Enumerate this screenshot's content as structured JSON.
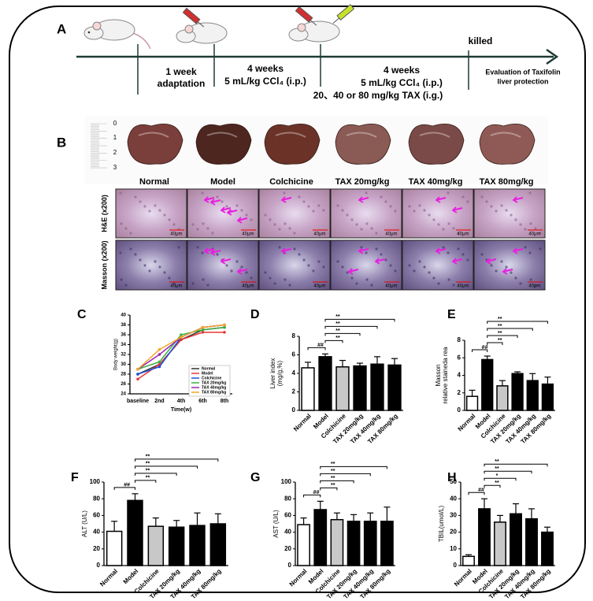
{
  "timeline": {
    "label": "A",
    "phases": [
      {
        "duration": "1 week",
        "treatment": "adaptation"
      },
      {
        "duration": "4 weeks",
        "treatment": "5 mL/kg CCl₄ (i.p.)"
      },
      {
        "duration": "4 weeks",
        "treatment": "5 mL/kg CCl₄ (i.p.)",
        "treatment2": "20、40 or 80 mg/kg TAX (i.g.)"
      }
    ],
    "end": "killed",
    "evaluation": [
      "Evaluation of Taxifolin",
      "liver protection"
    ]
  },
  "histology": {
    "label": "B",
    "ruler": [
      "0",
      "1",
      "2",
      "3"
    ],
    "groups": [
      "Normal",
      "Model",
      "Colchicine",
      "TAX 20mg/kg",
      "TAX 40mg/kg",
      "TAX 80mg/kg"
    ],
    "rows": [
      "H&E (x200)",
      "Masson (x200)"
    ],
    "scale_bar": "40μm"
  },
  "chart_data": [
    {
      "label": "C",
      "type": "line",
      "xlabel": "Time(w)",
      "ylabel": "Body weight(g)",
      "categories": [
        "baseline",
        "2nd",
        "4th",
        "6th",
        "8th"
      ],
      "ylim": [
        24,
        40
      ],
      "yticks": [
        24,
        26,
        28,
        30,
        32,
        34,
        36,
        38,
        40
      ],
      "series": [
        {
          "name": "Normal",
          "color": "#333333",
          "values": [
            28,
            30,
            35,
            37,
            37.5
          ]
        },
        {
          "name": "Model",
          "color": "#e53935",
          "values": [
            27,
            30,
            35,
            36.5,
            36.5
          ]
        },
        {
          "name": "Colchicine",
          "color": "#1e4fd8",
          "values": [
            28,
            29.5,
            35.5,
            37.5,
            38
          ]
        },
        {
          "name": "TAX 20mg/kg",
          "color": "#3cb043",
          "values": [
            29,
            30.5,
            36,
            37,
            37.5
          ]
        },
        {
          "name": "TAX 40mg/kg",
          "color": "#9c27b0",
          "values": [
            29,
            32,
            35.5,
            37.5,
            38
          ]
        },
        {
          "name": "TAX 80mg/kg",
          "color": "#f5a623",
          "values": [
            29,
            33,
            35.5,
            37.5,
            38
          ]
        }
      ]
    },
    {
      "label": "D",
      "type": "bar",
      "ylabel": [
        "Liver index",
        "(mg/g,%)"
      ],
      "categories": [
        "Normal",
        "Model",
        "Colchicine",
        "TAX 20mg/kg",
        "TAX 40mg/kg",
        "TAX 80mg/kg"
      ],
      "values": [
        4.6,
        5.8,
        4.7,
        4.8,
        5.0,
        4.9
      ],
      "errors": [
        0.6,
        0.3,
        0.7,
        0.3,
        0.8,
        0.7
      ],
      "colors": [
        "#ffffff",
        "#000000",
        "#c8c8c8",
        "#000000",
        "#000000",
        "#000000"
      ],
      "ylim": [
        0,
        8
      ],
      "yticks": [
        0,
        2,
        4,
        6,
        8
      ],
      "significance": [
        {
          "groups": [
            "Normal",
            "Model"
          ],
          "label": "##"
        },
        {
          "groups": [
            "Model",
            "Colchicine"
          ],
          "label": "**"
        },
        {
          "groups": [
            "Model",
            "TAX 20mg/kg"
          ],
          "label": "**"
        },
        {
          "groups": [
            "Model",
            "TAX 40mg/kg"
          ],
          "label": "**"
        },
        {
          "groups": [
            "Model",
            "TAX 80mg/kg"
          ],
          "label": "**"
        }
      ]
    },
    {
      "label": "E",
      "type": "bar",
      "ylabel": [
        "Masson",
        "relative staineda rea"
      ],
      "categories": [
        "Normal",
        "Model",
        "Colchicine",
        "TAX 20mg/kg",
        "TAX 40mg/kg",
        "TAX 80mg/kg"
      ],
      "values": [
        1.6,
        5.8,
        2.8,
        4.2,
        3.4,
        3.0
      ],
      "errors": [
        0.7,
        0.4,
        0.6,
        0.2,
        0.8,
        0.8
      ],
      "colors": [
        "#ffffff",
        "#000000",
        "#c8c8c8",
        "#000000",
        "#000000",
        "#000000"
      ],
      "ylim": [
        0,
        8
      ],
      "yticks": [
        0,
        2,
        4,
        6,
        8
      ],
      "significance": [
        {
          "groups": [
            "Normal",
            "Model"
          ],
          "label": "##"
        },
        {
          "groups": [
            "Model",
            "Colchicine"
          ],
          "label": "**"
        },
        {
          "groups": [
            "Model",
            "TAX 20mg/kg"
          ],
          "label": "**"
        },
        {
          "groups": [
            "Model",
            "TAX 40mg/kg"
          ],
          "label": "**"
        },
        {
          "groups": [
            "Model",
            "TAX 80mg/kg"
          ],
          "label": "**"
        }
      ]
    },
    {
      "label": "F",
      "type": "bar",
      "ylabel": [
        "ALT (U/L)"
      ],
      "categories": [
        "Normal",
        "Model",
        "Colchicine",
        "TAX 20mg/kg",
        "TAX 40mg/kg",
        "TAX 80mg/kg"
      ],
      "values": [
        41,
        78,
        47,
        46,
        48,
        50
      ],
      "errors": [
        12,
        8,
        10,
        8,
        15,
        12
      ],
      "colors": [
        "#ffffff",
        "#000000",
        "#c8c8c8",
        "#000000",
        "#000000",
        "#000000"
      ],
      "ylim": [
        0,
        100
      ],
      "yticks": [
        0,
        20,
        40,
        60,
        80,
        100
      ],
      "significance": [
        {
          "groups": [
            "Normal",
            "Model"
          ],
          "label": "##"
        },
        {
          "groups": [
            "Model",
            "Colchicine"
          ],
          "label": "**"
        },
        {
          "groups": [
            "Model",
            "TAX 20mg/kg"
          ],
          "label": "**"
        },
        {
          "groups": [
            "Model",
            "TAX 40mg/kg"
          ],
          "label": "**"
        },
        {
          "groups": [
            "Model",
            "TAX 80mg/kg"
          ],
          "label": "**"
        }
      ]
    },
    {
      "label": "G",
      "type": "bar",
      "ylabel": [
        "AST (U/L)"
      ],
      "categories": [
        "Normal",
        "Model",
        "Colchicine",
        "TAX 20mg/kg",
        "TAX 40mg/kg",
        "TAX 80mg/kg"
      ],
      "values": [
        49,
        67,
        55,
        53,
        53,
        53
      ],
      "errors": [
        8,
        10,
        8,
        8,
        10,
        17
      ],
      "colors": [
        "#ffffff",
        "#000000",
        "#c8c8c8",
        "#000000",
        "#000000",
        "#000000"
      ],
      "ylim": [
        0,
        100
      ],
      "yticks": [
        0,
        20,
        40,
        60,
        80,
        100
      ],
      "significance": [
        {
          "groups": [
            "Normal",
            "Model"
          ],
          "label": "##"
        },
        {
          "groups": [
            "Model",
            "Colchicine"
          ],
          "label": "**"
        },
        {
          "groups": [
            "Model",
            "TAX 20mg/kg"
          ],
          "label": "**"
        },
        {
          "groups": [
            "Model",
            "TAX 40mg/kg"
          ],
          "label": "**"
        },
        {
          "groups": [
            "Model",
            "TAX 80mg/kg"
          ],
          "label": "**"
        }
      ]
    },
    {
      "label": "H",
      "type": "bar",
      "ylabel": [
        "TBIL(umol/L)"
      ],
      "categories": [
        "Normal",
        "Model",
        "Colchicine",
        "TAX 20mg/kg",
        "TAX 40mg/kg",
        "TAX 80mg/kg"
      ],
      "values": [
        5.5,
        34,
        26,
        31,
        28,
        20
      ],
      "errors": [
        1,
        6,
        4,
        6,
        6,
        3
      ],
      "colors": [
        "#ffffff",
        "#000000",
        "#c8c8c8",
        "#000000",
        "#000000",
        "#000000"
      ],
      "ylim": [
        0,
        50
      ],
      "yticks": [
        0,
        10,
        20,
        30,
        40,
        50
      ],
      "significance": [
        {
          "groups": [
            "Normal",
            "Model"
          ],
          "label": "##"
        },
        {
          "groups": [
            "Model",
            "Colchicine"
          ],
          "label": "**"
        },
        {
          "groups": [
            "Model",
            "TAX 20mg/kg"
          ],
          "label": "*"
        },
        {
          "groups": [
            "Model",
            "TAX 40mg/kg"
          ],
          "label": "**"
        },
        {
          "groups": [
            "Model",
            "TAX 80mg/kg"
          ],
          "label": "**"
        }
      ]
    }
  ]
}
